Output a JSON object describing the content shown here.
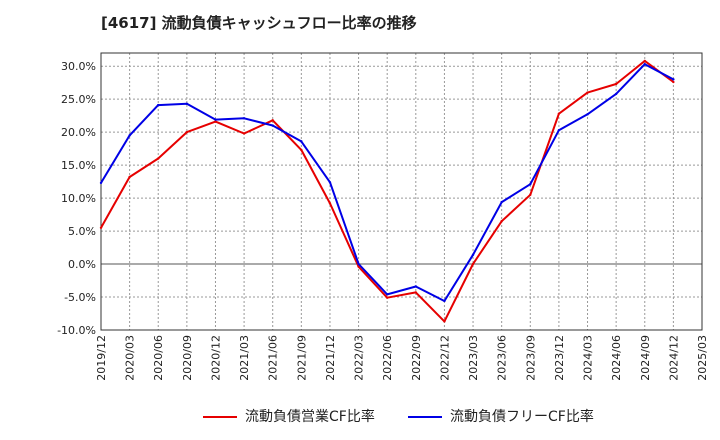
{
  "chart_data": {
    "type": "line",
    "title": "[4617]  流動負債キャッシュフロー比率の推移",
    "xlabel": "",
    "ylabel": "",
    "categories": [
      "2019/12",
      "2020/03",
      "2020/06",
      "2020/09",
      "2020/12",
      "2021/03",
      "2021/06",
      "2021/09",
      "2021/12",
      "2022/03",
      "2022/06",
      "2022/09",
      "2022/12",
      "2023/03",
      "2023/06",
      "2023/09",
      "2023/12",
      "2024/03",
      "2024/06",
      "2024/09",
      "2024/12",
      "2025/03"
    ],
    "y_ticks": [
      "30.0%",
      "25.0%",
      "20.0%",
      "15.0%",
      "10.0%",
      "5.0%",
      "0.0%",
      "-5.0%",
      "-10.0%"
    ],
    "ylim": [
      -10,
      32
    ],
    "grid": true,
    "legend_position": "bottom",
    "series": [
      {
        "name": "流動負債営業CF比率",
        "color": "#e60000",
        "values": [
          5.5,
          13.2,
          16.0,
          20.0,
          21.6,
          19.8,
          21.8,
          17.3,
          9.2,
          -0.4,
          -5.1,
          -4.3,
          -8.7,
          0.0,
          6.5,
          10.5,
          22.8,
          26.0,
          27.3,
          30.8,
          27.6,
          null
        ]
      },
      {
        "name": "流動負債フリーCF比率",
        "color": "#0000e6",
        "values": [
          12.3,
          19.5,
          24.1,
          24.3,
          21.9,
          22.1,
          21.0,
          18.6,
          12.4,
          0.0,
          -4.6,
          -3.4,
          -5.6,
          1.4,
          9.4,
          12.1,
          20.3,
          22.7,
          25.8,
          30.3,
          28.0,
          null
        ]
      }
    ]
  }
}
